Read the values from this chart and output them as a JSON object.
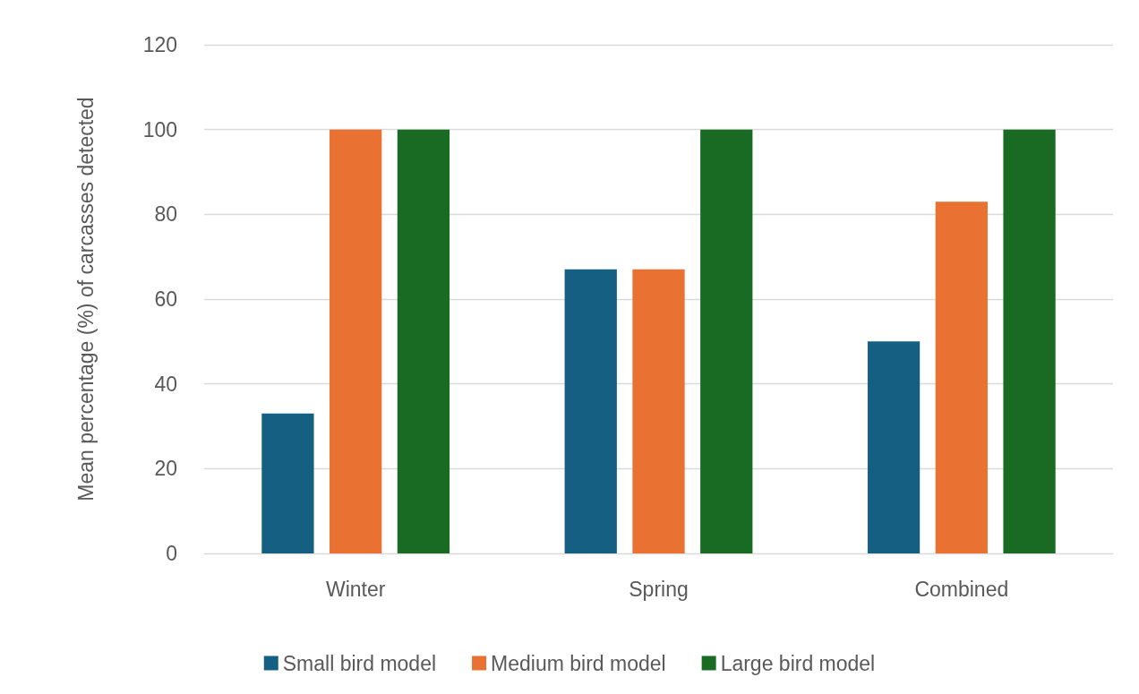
{
  "chart_data": {
    "type": "bar",
    "ylabel": "Mean percentage (%) of carcasses detected",
    "categories": [
      "Winter",
      "Spring",
      "Combined"
    ],
    "series": [
      {
        "name": "Small bird model",
        "color": "#156082",
        "values": [
          33,
          67,
          50
        ]
      },
      {
        "name": "Medium bird model",
        "color": "#e97132",
        "values": [
          100,
          67,
          83
        ]
      },
      {
        "name": "Large bird model",
        "color": "#196b24",
        "values": [
          100,
          100,
          100
        ]
      }
    ],
    "ylim": [
      0,
      120
    ],
    "yticks": [
      0,
      20,
      40,
      60,
      80,
      100,
      120
    ],
    "grid": "y",
    "legend": "bottom"
  }
}
